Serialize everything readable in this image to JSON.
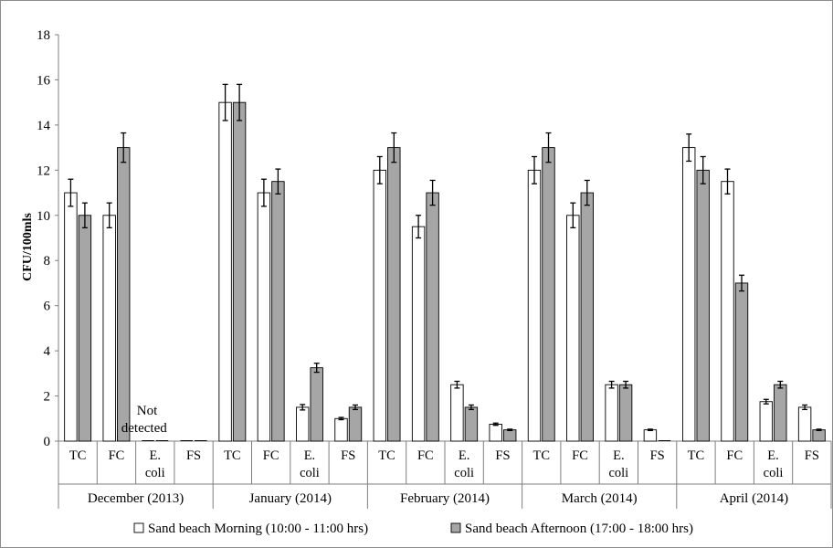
{
  "chart_data": {
    "type": "bar",
    "ylabel": "CFU/100mls",
    "ylim": [
      0,
      18
    ],
    "yticks": [
      0,
      2,
      4,
      6,
      8,
      10,
      12,
      14,
      16,
      18
    ],
    "grid": false,
    "legend_position": "bottom",
    "groups": [
      {
        "label": "December (2013)",
        "categories": [
          "TC",
          "FC",
          "E. coli",
          "FS"
        ]
      },
      {
        "label": "January (2014)",
        "categories": [
          "TC",
          "FC",
          "E. coli",
          "FS"
        ]
      },
      {
        "label": "February (2014)",
        "categories": [
          "TC",
          "FC",
          "E. coli",
          "FS"
        ]
      },
      {
        "label": "March (2014)",
        "categories": [
          "TC",
          "FC",
          "E. coli",
          "FS"
        ]
      },
      {
        "label": "April (2014)",
        "categories": [
          "TC",
          "FC",
          "E. coli",
          "FS"
        ]
      }
    ],
    "series": [
      {
        "name": "Sand beach Morning (10:00 - 11:00 hrs)",
        "color": "#ffffff",
        "values": [
          11,
          10,
          0,
          0,
          15,
          11,
          1.5,
          1,
          12,
          9.5,
          2.5,
          0.75,
          12,
          10,
          2.5,
          0.5,
          13,
          11.5,
          1.75,
          1.5
        ],
        "errors": [
          0.6,
          0.55,
          0,
          0,
          0.8,
          0.6,
          0.12,
          0.05,
          0.6,
          0.5,
          0.15,
          0.05,
          0.6,
          0.55,
          0.15,
          0.03,
          0.6,
          0.55,
          0.1,
          0.1
        ]
      },
      {
        "name": "Sand beach Afternoon (17:00 - 18:00 hrs)",
        "color": "#a6a6a6",
        "values": [
          10,
          13,
          0,
          0,
          15,
          11.5,
          3.25,
          1.5,
          13,
          11,
          1.5,
          0.5,
          13,
          11,
          2.5,
          0,
          12,
          7,
          2.5,
          0.5
        ],
        "errors": [
          0.55,
          0.65,
          0,
          0,
          0.8,
          0.55,
          0.2,
          0.1,
          0.65,
          0.55,
          0.1,
          0.03,
          0.65,
          0.55,
          0.15,
          0,
          0.6,
          0.35,
          0.15,
          0.03
        ]
      }
    ],
    "annotations": [
      {
        "text_lines": [
          "Not",
          "detected"
        ],
        "group": 0,
        "category": 2
      }
    ]
  }
}
